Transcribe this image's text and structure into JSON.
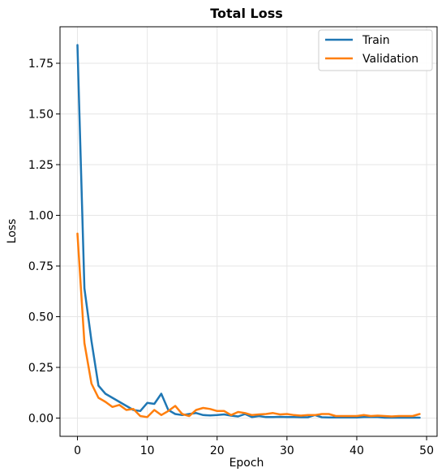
{
  "chart_data": {
    "type": "line",
    "title": "Total Loss",
    "xlabel": "Epoch",
    "ylabel": "Loss",
    "xlim": [
      -2.5,
      51.5
    ],
    "ylim": [
      -0.09,
      1.93
    ],
    "xticks": [
      0,
      10,
      20,
      30,
      40,
      50
    ],
    "yticks": [
      0.0,
      0.25,
      0.5,
      0.75,
      1.0,
      1.25,
      1.5,
      1.75
    ],
    "xtick_labels": [
      "0",
      "10",
      "20",
      "30",
      "40",
      "50"
    ],
    "ytick_labels": [
      "0.00",
      "0.25",
      "0.50",
      "0.75",
      "1.00",
      "1.25",
      "1.50",
      "1.75"
    ],
    "grid": true,
    "legend_position": "top-right",
    "x": [
      0,
      1,
      2,
      3,
      4,
      5,
      6,
      7,
      8,
      9,
      10,
      11,
      12,
      13,
      14,
      15,
      16,
      17,
      18,
      19,
      20,
      21,
      22,
      23,
      24,
      25,
      26,
      27,
      28,
      29,
      30,
      31,
      32,
      33,
      34,
      35,
      36,
      37,
      38,
      39,
      40,
      41,
      42,
      43,
      44,
      45,
      46,
      47,
      48,
      49
    ],
    "series": [
      {
        "name": "Train",
        "color": "#1f77b4",
        "values": [
          1.84,
          0.64,
          0.38,
          0.16,
          0.12,
          0.1,
          0.08,
          0.06,
          0.04,
          0.035,
          0.075,
          0.07,
          0.12,
          0.04,
          0.02,
          0.015,
          0.02,
          0.025,
          0.015,
          0.013,
          0.015,
          0.018,
          0.012,
          0.008,
          0.02,
          0.005,
          0.01,
          0.005,
          0.005,
          0.006,
          0.005,
          0.005,
          0.004,
          0.004,
          0.015,
          0.004,
          0.003,
          0.003,
          0.003,
          0.003,
          0.003,
          0.005,
          0.005,
          0.005,
          0.002,
          0.002,
          0.002,
          0.002,
          0.002,
          0.002
        ]
      },
      {
        "name": "Validation",
        "color": "#ff7f0e",
        "values": [
          0.91,
          0.37,
          0.17,
          0.1,
          0.08,
          0.055,
          0.065,
          0.04,
          0.045,
          0.01,
          0.005,
          0.04,
          0.015,
          0.035,
          0.06,
          0.02,
          0.01,
          0.04,
          0.05,
          0.045,
          0.035,
          0.035,
          0.015,
          0.03,
          0.025,
          0.015,
          0.018,
          0.02,
          0.025,
          0.018,
          0.02,
          0.015,
          0.012,
          0.015,
          0.015,
          0.02,
          0.02,
          0.01,
          0.01,
          0.01,
          0.01,
          0.015,
          0.01,
          0.012,
          0.01,
          0.008,
          0.01,
          0.01,
          0.01,
          0.02
        ]
      }
    ]
  }
}
